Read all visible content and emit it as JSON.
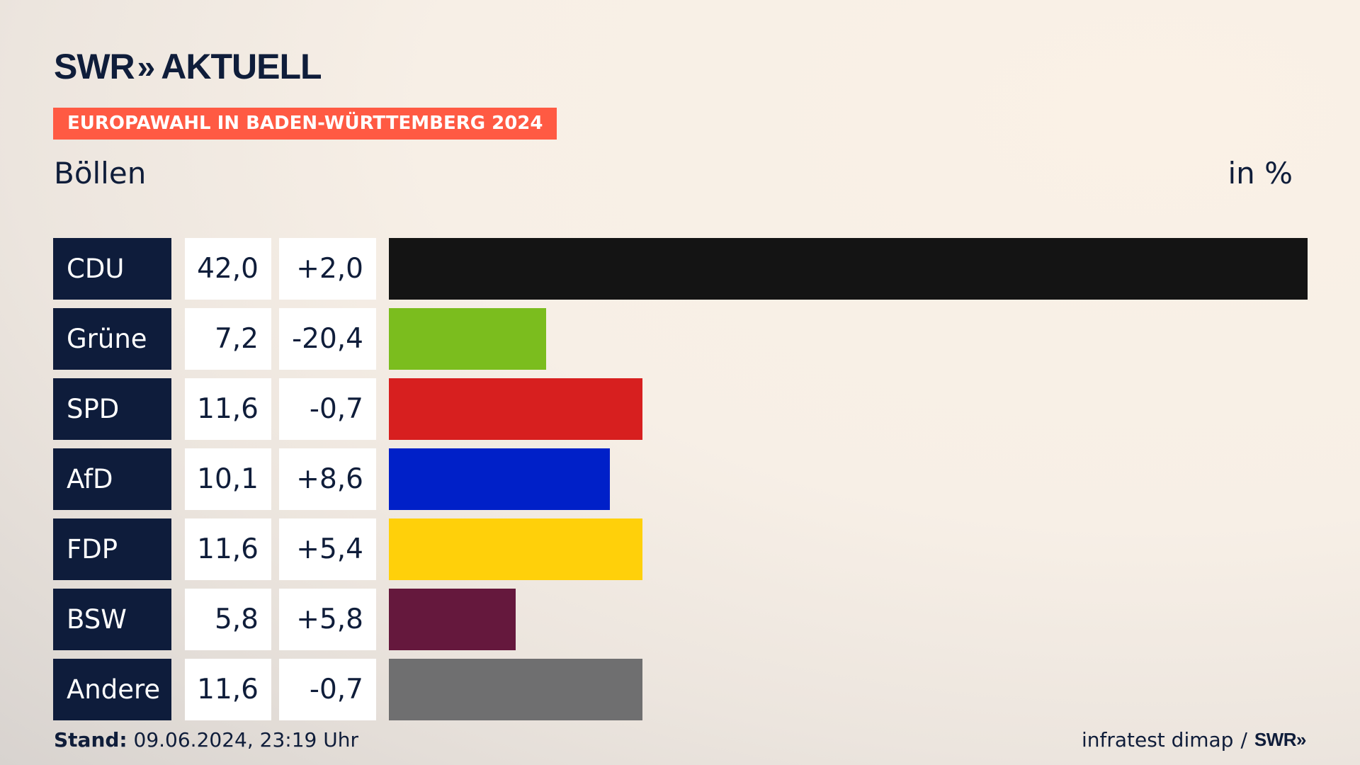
{
  "header": {
    "logo_swr": "SWR",
    "logo_chev": "»",
    "logo_aktuell": "AKTUELL",
    "banner": "EUROPAWAHL IN BADEN-WÜRTTEMBERG 2024",
    "place": "Böllen",
    "unit": "in %"
  },
  "chart_data": {
    "type": "bar",
    "orientation": "horizontal",
    "title": "EUROPAWAHL IN BADEN-WÜRTTEMBERG 2024",
    "subtitle": "Böllen",
    "unit": "in %",
    "xlim": [
      0,
      42.0
    ],
    "categories": [
      "CDU",
      "Grüne",
      "SPD",
      "AfD",
      "FDP",
      "BSW",
      "Andere"
    ],
    "values": [
      42.0,
      7.2,
      11.6,
      10.1,
      11.6,
      5.8,
      11.6
    ],
    "value_labels": [
      "42,0",
      "7,2",
      "11,6",
      "10,1",
      "11,6",
      "5,8",
      "11,6"
    ],
    "change_labels": [
      "+2,0",
      "-20,4",
      "-0,7",
      "+8,6",
      "+5,4",
      "+5,8",
      "-0,7"
    ],
    "colors": [
      "#141414",
      "#7bbd1e",
      "#d71f1f",
      "#0020c8",
      "#ffd00a",
      "#65183d",
      "#6f6f70"
    ]
  },
  "footer": {
    "stand_label": "Stand:",
    "stand_value": " 09.06.2024, 23:19 Uhr",
    "source": "infratest dimap",
    "sep": "/",
    "source_logo": "SWR»"
  }
}
